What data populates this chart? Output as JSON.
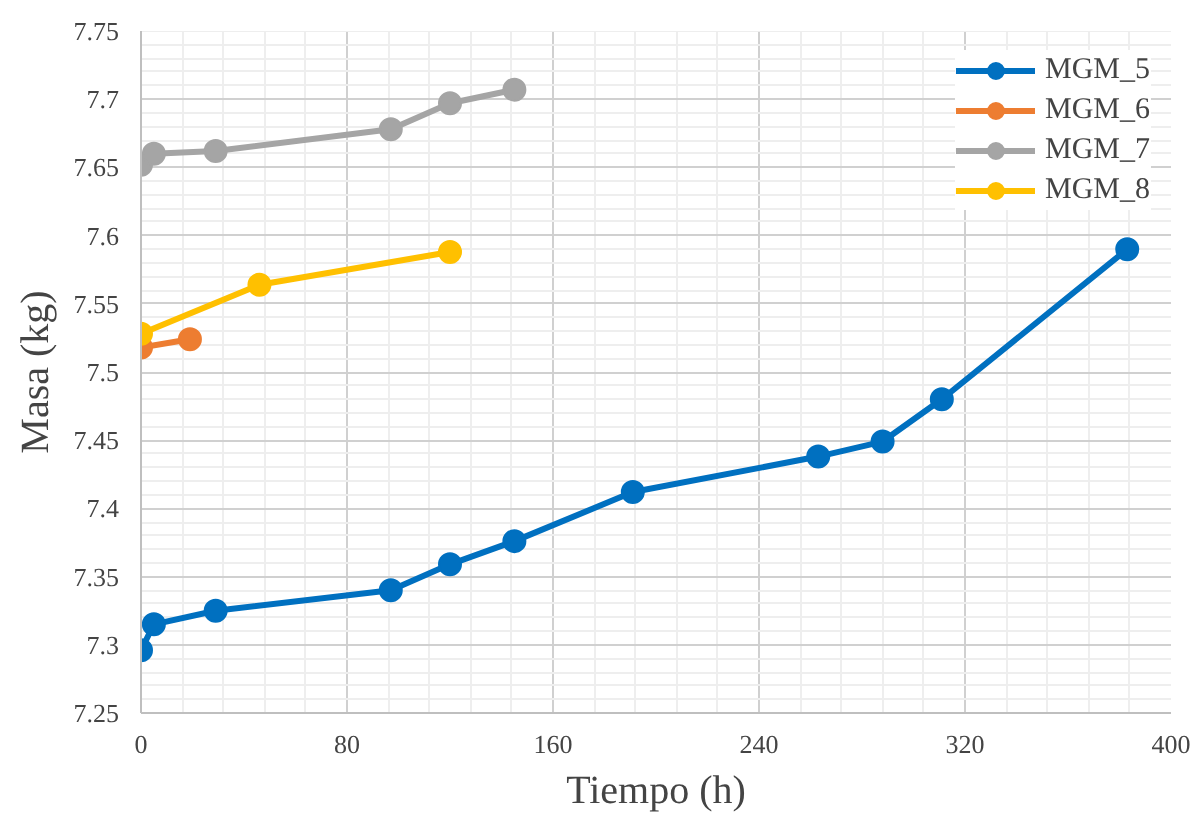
{
  "chart_data": {
    "type": "line",
    "xlabel": "Tiempo (h)",
    "ylabel": "Masa (kg)",
    "xlim": [
      0,
      400
    ],
    "xticks": [
      0,
      80,
      160,
      240,
      320,
      400
    ],
    "ylim": [
      7.25,
      7.75
    ],
    "yticks": [
      7.25,
      7.3,
      7.35,
      7.4,
      7.45,
      7.5,
      7.55,
      7.6,
      7.65,
      7.7,
      7.75
    ],
    "grid": true,
    "legend": "top right",
    "marker": "circle",
    "line_style": "solid",
    "series": [
      {
        "name": "MGM_5",
        "color": "#0070c0",
        "x": [
          0,
          5,
          29,
          97,
          120,
          145,
          191,
          263,
          288,
          311,
          383
        ],
        "values": [
          7.296,
          7.315,
          7.325,
          7.34,
          7.359,
          7.376,
          7.412,
          7.438,
          7.449,
          7.48,
          7.59
        ]
      },
      {
        "name": "MGM_6",
        "color": "#ed7d31",
        "x": [
          0,
          19
        ],
        "values": [
          7.518,
          7.524
        ]
      },
      {
        "name": "MGM_7",
        "color": "#a5a5a5",
        "x": [
          0,
          5,
          29,
          97,
          120,
          145
        ],
        "values": [
          7.652,
          7.66,
          7.662,
          7.678,
          7.697,
          7.707
        ]
      },
      {
        "name": "MGM_8",
        "color": "#ffc000",
        "x": [
          0,
          46,
          120
        ],
        "values": [
          7.528,
          7.564,
          7.588
        ]
      }
    ]
  }
}
